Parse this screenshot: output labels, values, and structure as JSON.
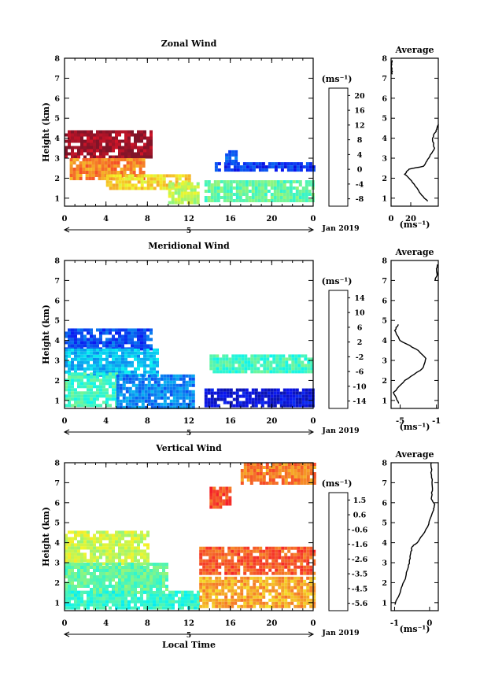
{
  "chart_data": [
    {
      "type": "heatmap",
      "title": "Zonal Wind",
      "ylabel": "Height (km)",
      "xlabel": "",
      "x_ticks": [
        "0",
        "4",
        "8",
        "12",
        "16",
        "20",
        "0"
      ],
      "y_ticks": [
        "1",
        "2",
        "3",
        "4",
        "5",
        "6",
        "7",
        "8"
      ],
      "xlim": [
        0,
        24
      ],
      "ylim": [
        0.6,
        8.0
      ],
      "date_marker": "5",
      "date_label": "Jan 2019",
      "colorbar": {
        "unit": "(ms⁻¹)",
        "ticks": [
          "-8",
          "-4",
          "0",
          "4",
          "8",
          "12",
          "16",
          "20"
        ],
        "range": [
          -10,
          22
        ]
      },
      "regions": [
        {
          "x": [
            0,
            8.3
          ],
          "y": [
            3.0,
            4.4
          ],
          "value": 21
        },
        {
          "x": [
            0.5,
            7.5
          ],
          "y": [
            2.0,
            3.0
          ],
          "value": 14
        },
        {
          "x": [
            4,
            12
          ],
          "y": [
            1.5,
            2.2
          ],
          "value": 11
        },
        {
          "x": [
            10,
            13
          ],
          "y": [
            0.7,
            1.8
          ],
          "value": 8
        },
        {
          "x": [
            13.5,
            24
          ],
          "y": [
            0.8,
            1.9
          ],
          "value": 5
        },
        {
          "x": [
            14.5,
            24
          ],
          "y": [
            2.4,
            2.8
          ],
          "value": -5
        },
        {
          "x": [
            15.5,
            16.5
          ],
          "y": [
            2.9,
            3.4
          ],
          "value": -3
        }
      ],
      "profile": {
        "title": "Average",
        "xlabel": "(ms⁻¹)",
        "x_ticks": [
          "0",
          "20"
        ],
        "xlim": [
          0,
          48
        ],
        "points": [
          [
            37,
            0.85
          ],
          [
            30,
            1.2
          ],
          [
            22,
            1.8
          ],
          [
            14,
            2.2
          ],
          [
            18,
            2.45
          ],
          [
            33,
            2.6
          ],
          [
            38,
            3.0
          ],
          [
            44,
            3.5
          ],
          [
            42,
            4.0
          ],
          [
            46,
            4.4
          ],
          [
            48,
            4.7
          ]
        ],
        "top_points": [
          [
            1,
            7.2
          ],
          [
            0.5,
            7.6
          ],
          [
            1,
            7.9
          ]
        ]
      }
    },
    {
      "type": "heatmap",
      "title": "Meridional Wind",
      "ylabel": "Height (km)",
      "xlabel": "",
      "x_ticks": [
        "0",
        "4",
        "8",
        "12",
        "16",
        "20",
        "0"
      ],
      "y_ticks": [
        "1",
        "2",
        "3",
        "4",
        "5",
        "6",
        "7",
        "8"
      ],
      "xlim": [
        0,
        24
      ],
      "ylim": [
        0.6,
        8.0
      ],
      "date_marker": "5",
      "date_label": "Jan 2019",
      "colorbar": {
        "unit": "(ms⁻¹)",
        "ticks": [
          "-14",
          "-10",
          "-6",
          "-2",
          "2",
          "6",
          "10",
          "14"
        ],
        "range": [
          -16,
          16
        ]
      },
      "regions": [
        {
          "x": [
            0,
            8.5
          ],
          "y": [
            3.6,
            4.6
          ],
          "value": -10
        },
        {
          "x": [
            0,
            9
          ],
          "y": [
            2.3,
            3.6
          ],
          "value": -6
        },
        {
          "x": [
            0,
            5
          ],
          "y": [
            0.8,
            2.4
          ],
          "value": -2
        },
        {
          "x": [
            5,
            12.5
          ],
          "y": [
            0.7,
            2.3
          ],
          "value": -8
        },
        {
          "x": [
            13.5,
            24
          ],
          "y": [
            0.7,
            1.6
          ],
          "value": -13
        },
        {
          "x": [
            14,
            24
          ],
          "y": [
            2.4,
            3.3
          ],
          "value": -2
        }
      ],
      "profile": {
        "title": "Average",
        "xlabel": "(ms⁻¹)",
        "x_ticks": [
          "-5",
          "-1"
        ],
        "xlim": [
          -6,
          -0.8
        ],
        "points": [
          [
            -5.2,
            0.85
          ],
          [
            -5.7,
            1.4
          ],
          [
            -4.5,
            2.0
          ],
          [
            -2.5,
            2.6
          ],
          [
            -2.2,
            3.1
          ],
          [
            -3.0,
            3.5
          ],
          [
            -5.0,
            4.0
          ],
          [
            -5.6,
            4.5
          ],
          [
            -5.2,
            4.8
          ]
        ],
        "top_points": [
          [
            -1.2,
            7.0
          ],
          [
            -0.9,
            7.3
          ],
          [
            -1.0,
            7.5
          ],
          [
            -0.9,
            7.8
          ]
        ]
      }
    },
    {
      "type": "heatmap",
      "title": "Vertical Wind",
      "ylabel": "Height (km)",
      "xlabel": "Local Time",
      "x_ticks": [
        "0",
        "4",
        "8",
        "12",
        "16",
        "20",
        "0"
      ],
      "y_ticks": [
        "1",
        "2",
        "3",
        "4",
        "5",
        "6",
        "7",
        "8"
      ],
      "xlim": [
        0,
        24
      ],
      "ylim": [
        0.6,
        8.0
      ],
      "date_marker": "5",
      "date_label": "Jan 2019",
      "colorbar": {
        "unit": "(ms⁻¹)",
        "ticks": [
          "-5.6",
          "-4.5",
          "-3.5",
          "-2.6",
          "-1.6",
          "-0.6",
          "0.6",
          "1.5"
        ],
        "range": [
          -6.2,
          2.1
        ]
      },
      "regions": [
        {
          "x": [
            0,
            8
          ],
          "y": [
            3.0,
            4.6
          ],
          "value": -1.4
        },
        {
          "x": [
            0,
            10
          ],
          "y": [
            1.5,
            3.0
          ],
          "value": -2.3
        },
        {
          "x": [
            0,
            13
          ],
          "y": [
            0.7,
            1.6
          ],
          "value": -2.7
        },
        {
          "x": [
            13,
            24
          ],
          "y": [
            2.4,
            3.8
          ],
          "value": 0.4
        },
        {
          "x": [
            13,
            24
          ],
          "y": [
            0.8,
            2.3
          ],
          "value": -0.3
        },
        {
          "x": [
            14,
            16
          ],
          "y": [
            5.8,
            6.8
          ],
          "value": 0.5
        },
        {
          "x": [
            17,
            24
          ],
          "y": [
            7.0,
            8.0
          ],
          "value": 0.1
        }
      ],
      "profile": {
        "title": "Average",
        "xlabel": "(ms⁻¹)",
        "x_ticks": [
          "-1",
          "0"
        ],
        "xlim": [
          -1.1,
          0.25
        ],
        "points": [
          [
            -1.0,
            0.9
          ],
          [
            -0.85,
            1.5
          ],
          [
            -0.7,
            2.2
          ],
          [
            -0.6,
            2.8
          ],
          [
            -0.55,
            3.3
          ],
          [
            -0.5,
            3.8
          ],
          [
            -0.35,
            4.0
          ],
          [
            -0.05,
            4.8
          ],
          [
            0.1,
            5.6
          ],
          [
            0.15,
            5.9
          ],
          [
            0.05,
            6.2
          ],
          [
            0.08,
            6.8
          ],
          [
            0.05,
            7.5
          ],
          [
            0.05,
            8.0
          ]
        ]
      }
    }
  ]
}
